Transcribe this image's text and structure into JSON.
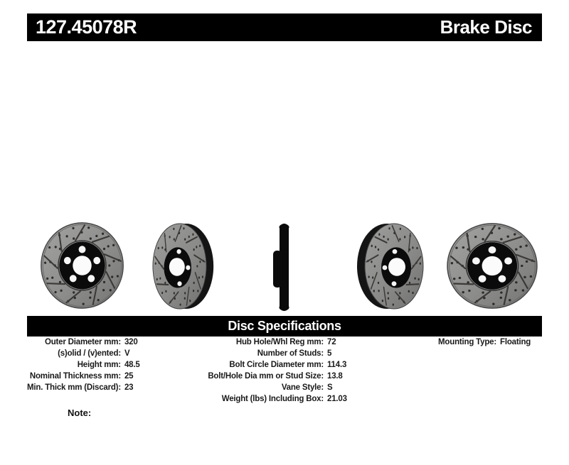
{
  "header": {
    "part_number": "127.45078R",
    "product_type": "Brake Disc"
  },
  "spec_header": {
    "title": "Disc Specifications"
  },
  "specs": {
    "col1": [
      {
        "label": "Outer Diameter mm:",
        "value": "320"
      },
      {
        "label": "(s)olid / (v)ented:",
        "value": "V"
      },
      {
        "label": "Height mm:",
        "value": "48.5"
      },
      {
        "label": "Nominal Thickness mm:",
        "value": "25"
      },
      {
        "label": "Min. Thick mm (Discard):",
        "value": "23"
      }
    ],
    "col2": [
      {
        "label": "Hub Hole/Whl Reg mm:",
        "value": "72"
      },
      {
        "label": "Number of Studs:",
        "value": "5"
      },
      {
        "label": "Bolt Circle Diameter mm:",
        "value": "114.3"
      },
      {
        "label": "Bolt/Hole Dia mm or Stud Size:",
        "value": "13.8"
      },
      {
        "label": "Vane Style:",
        "value": "S"
      },
      {
        "label": "Weight (lbs) Including Box:",
        "value": "21.03"
      }
    ],
    "col3": [
      {
        "label": "Mounting Type:",
        "value": "Floating"
      }
    ]
  },
  "note": {
    "label": "Note:"
  },
  "images": {
    "views": [
      "brake-disc-front-view",
      "brake-disc-angled-view-right-edge",
      "brake-disc-edge-profile-view",
      "brake-disc-angled-view-left-edge",
      "brake-disc-front-view"
    ]
  },
  "colors": {
    "bar_background": "#000000",
    "bar_text": "#ffffff",
    "rotor_gray": "#8c8c8c",
    "hub_black": "#0b0b0b",
    "page_background": "#ffffff"
  }
}
